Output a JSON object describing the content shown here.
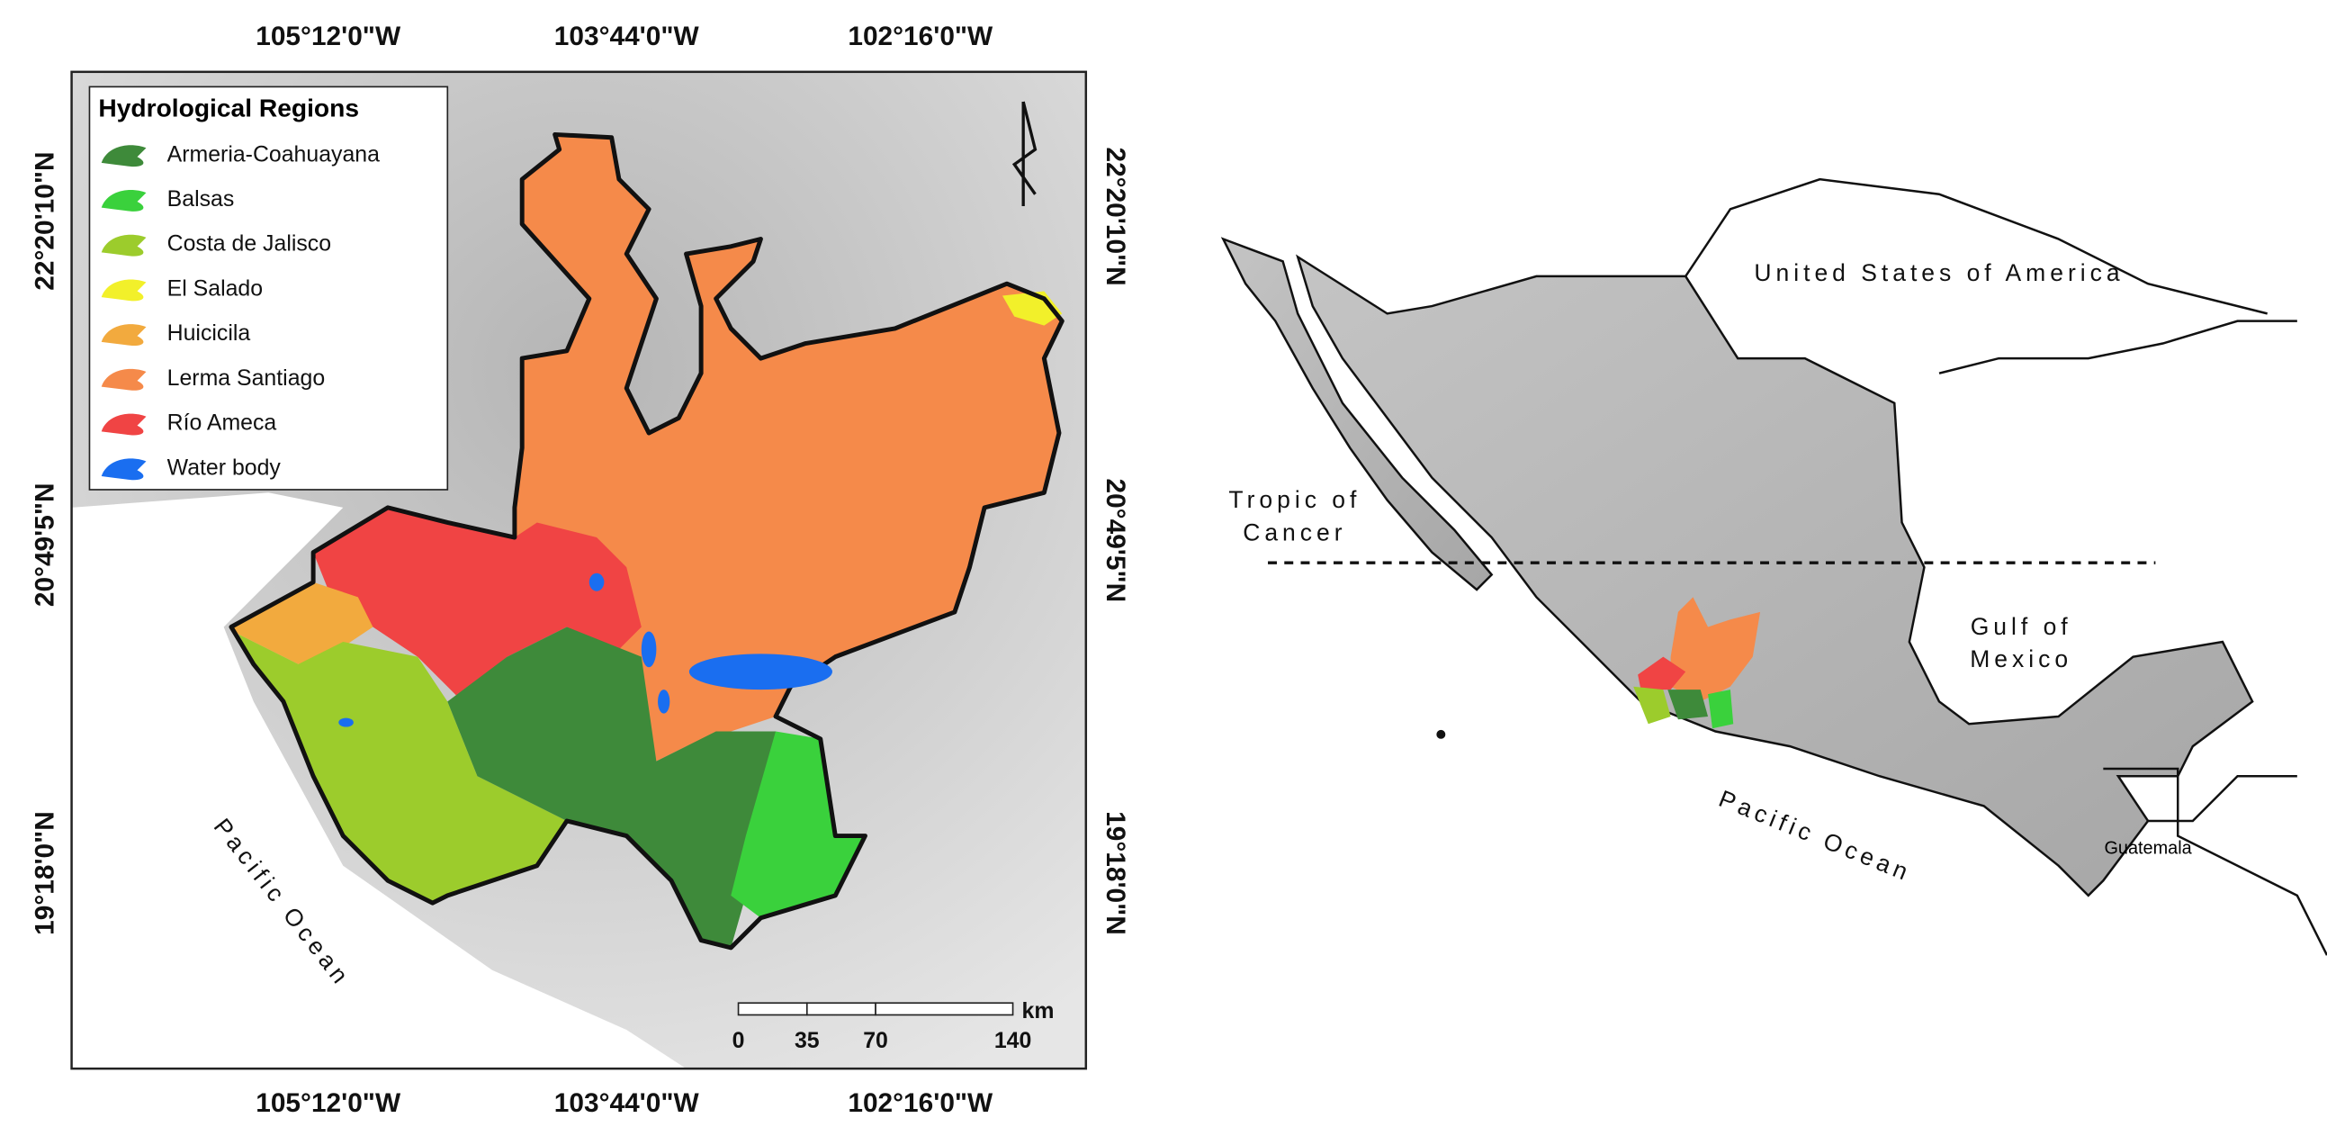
{
  "left_map": {
    "lon_labels": [
      "105°12'0\"W",
      "103°44'0\"W",
      "102°16'0\"W"
    ],
    "lat_labels": [
      "22°20'10\"N",
      "20°49'5\"N",
      "19°18'0\"N"
    ],
    "legend": {
      "title": "Hydrological Regions",
      "items": [
        {
          "label": "Armeria-Coahuayana",
          "color": "#3e8a3a"
        },
        {
          "label": "Balsas",
          "color": "#3ad13c"
        },
        {
          "label": "Costa de Jalisco",
          "color": "#9ccc2c"
        },
        {
          "label": "El Salado",
          "color": "#f2f02a"
        },
        {
          "label": "Huicicila",
          "color": "#f2aa3e"
        },
        {
          "label": "Lerma Santiago",
          "color": "#f58a4a"
        },
        {
          "label": "Río Ameca",
          "color": "#f04444"
        },
        {
          "label": "Water body",
          "color": "#1a6ef0"
        }
      ]
    },
    "scale_bar": {
      "unit": "km",
      "ticks": [
        "0",
        "35",
        "70",
        "140"
      ]
    },
    "ocean_label": "Pacific Ocean"
  },
  "right_map": {
    "country_label": "United States of America",
    "tropic_label": [
      "Tropic of",
      "Cancer"
    ],
    "gulf_label": [
      "Gulf of",
      "Mexico"
    ],
    "ocean_label": "Pacific Ocean",
    "guatemala_label": "Guatemala"
  }
}
